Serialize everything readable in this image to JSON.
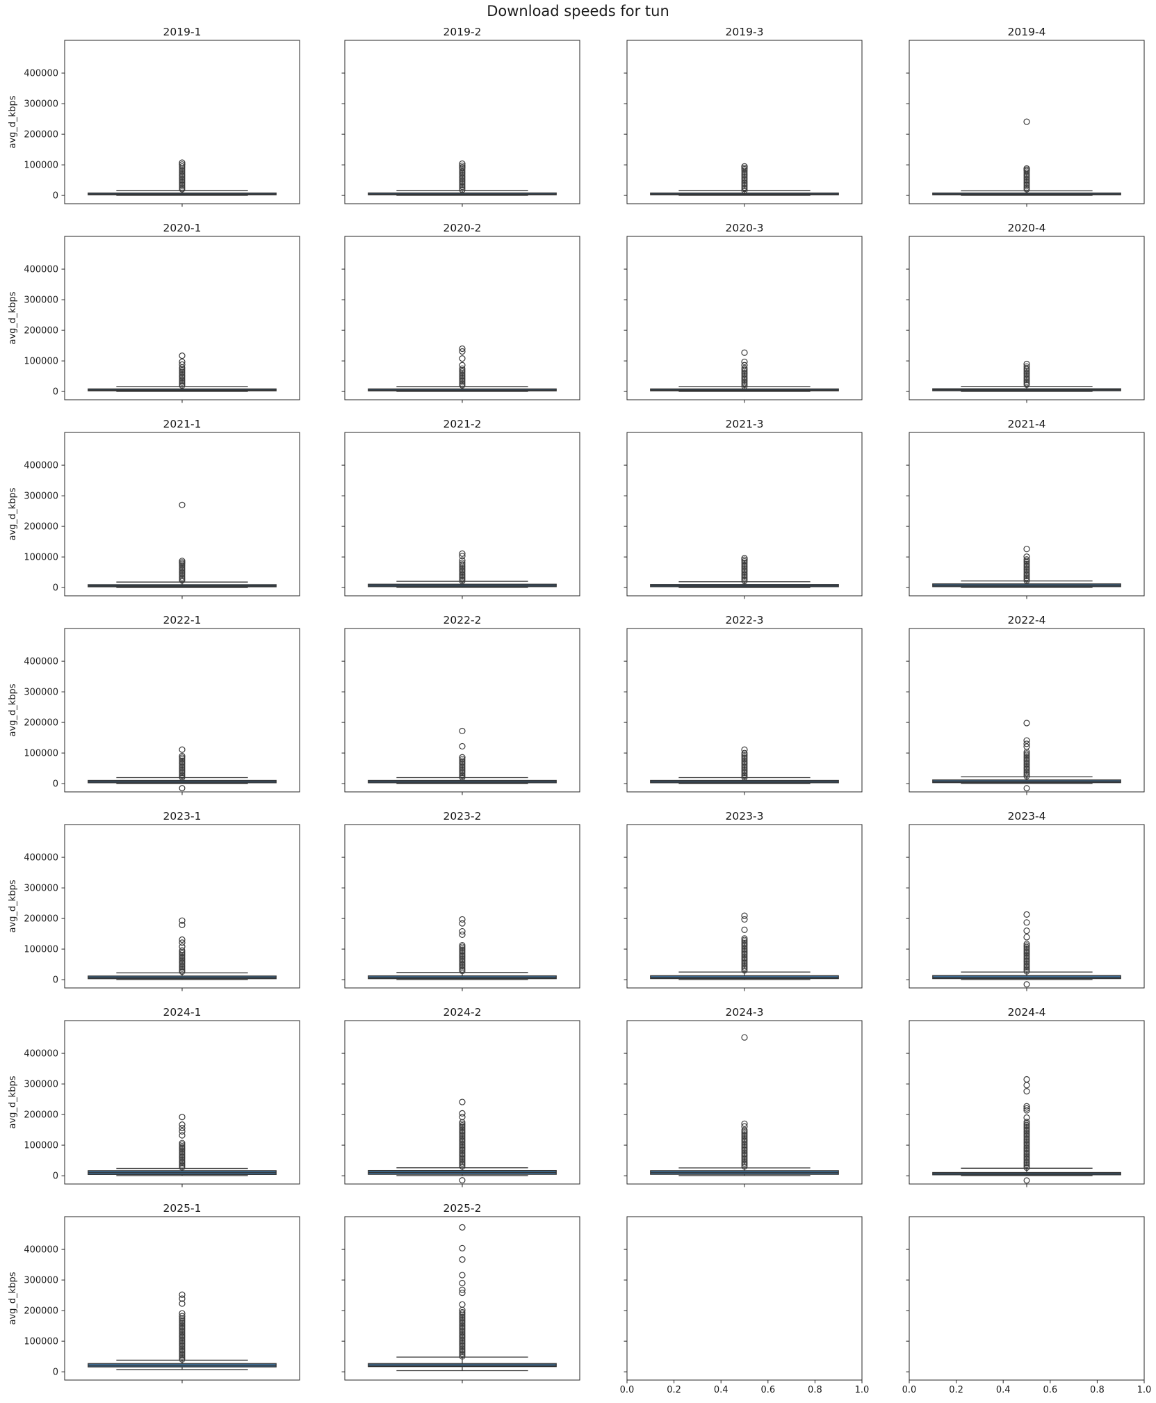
{
  "chart_data": {
    "type": "box",
    "title": "Download speeds for tun",
    "ylabel": "avg_d_kbps",
    "y_ticks": [
      0,
      100000,
      200000,
      300000,
      400000
    ],
    "ylim": [
      -27000,
      507000
    ],
    "grid": {
      "rows": 7,
      "cols": 4
    },
    "legend": "none",
    "grid_lines": "off",
    "box_fill_color": "#3e6e97",
    "line_color": "#333333",
    "spine_color": "#262626",
    "text_color": "#1a1a1a",
    "empty_panel_x_ticks": [
      "0.0",
      "0.2",
      "0.4",
      "0.6",
      "0.8",
      "1.0"
    ],
    "subplots": [
      {
        "title": "2019-1",
        "box": {
          "whisker_low": 300,
          "q1": 2000,
          "median": 4500,
          "q3": 8000,
          "whisker_high": 15500
        },
        "outlier_column": [
          16000,
          95000
        ],
        "outliers_high": [
          107000,
          101000
        ],
        "outliers_low": []
      },
      {
        "title": "2019-2",
        "box": {
          "whisker_low": 300,
          "q1": 2000,
          "median": 4500,
          "q3": 8200,
          "whisker_high": 15500
        },
        "outlier_column": [
          16000,
          88000
        ],
        "outliers_high": [
          104000,
          97000,
          92000
        ],
        "outliers_low": []
      },
      {
        "title": "2019-3",
        "box": {
          "whisker_low": 300,
          "q1": 2000,
          "median": 4500,
          "q3": 8000,
          "whisker_high": 15500
        },
        "outlier_column": [
          16000,
          86000
        ],
        "outliers_high": [
          95000,
          90000
        ],
        "outliers_low": []
      },
      {
        "title": "2019-4",
        "box": {
          "whisker_low": 300,
          "q1": 2000,
          "median": 4500,
          "q3": 8000,
          "whisker_high": 15000
        },
        "outlier_column": [
          15500,
          80000
        ],
        "outliers_high": [
          241000,
          88000,
          84000
        ],
        "outliers_low": []
      },
      {
        "title": "2020-1",
        "box": {
          "whisker_low": 300,
          "q1": 2200,
          "median": 5000,
          "q3": 8500,
          "whisker_high": 16500
        },
        "outlier_column": [
          17000,
          79000
        ],
        "outliers_high": [
          117000,
          97000,
          88000
        ],
        "outliers_low": []
      },
      {
        "title": "2020-2",
        "box": {
          "whisker_low": 300,
          "q1": 2000,
          "median": 4800,
          "q3": 8500,
          "whisker_high": 16000
        },
        "outlier_column": [
          17000,
          75000
        ],
        "outliers_high": [
          140000,
          131000,
          108000,
          86000
        ],
        "outliers_low": []
      },
      {
        "title": "2020-3",
        "box": {
          "whisker_low": 300,
          "q1": 2200,
          "median": 5000,
          "q3": 8500,
          "whisker_high": 16500
        },
        "outlier_column": [
          17000,
          77000
        ],
        "outliers_high": [
          127000,
          97000,
          86000
        ],
        "outliers_low": []
      },
      {
        "title": "2020-4",
        "box": {
          "whisker_low": 400,
          "q1": 2500,
          "median": 5500,
          "q3": 9000,
          "whisker_high": 17000
        },
        "outlier_column": [
          17500,
          82000
        ],
        "outliers_high": [
          90000
        ],
        "outliers_low": []
      },
      {
        "title": "2021-1",
        "box": {
          "whisker_low": 400,
          "q1": 2500,
          "median": 5500,
          "q3": 9500,
          "whisker_high": 18000
        },
        "outlier_column": [
          18500,
          78000
        ],
        "outliers_high": [
          270000,
          87000,
          82000
        ],
        "outliers_low": []
      },
      {
        "title": "2021-2",
        "box": {
          "whisker_low": 500,
          "q1": 3000,
          "median": 6500,
          "q3": 11000,
          "whisker_high": 20500
        },
        "outlier_column": [
          21000,
          81000
        ],
        "outliers_high": [
          111000,
          103000,
          89000
        ],
        "outliers_low": []
      },
      {
        "title": "2021-3",
        "box": {
          "whisker_low": 400,
          "q1": 2800,
          "median": 6000,
          "q3": 10000,
          "whisker_high": 19000
        },
        "outlier_column": [
          20000,
          86000
        ],
        "outliers_high": [
          96000,
          91000
        ],
        "outliers_low": []
      },
      {
        "title": "2021-4",
        "box": {
          "whisker_low": 500,
          "q1": 3000,
          "median": 7000,
          "q3": 12000,
          "whisker_high": 21500
        },
        "outlier_column": [
          22000,
          92000
        ],
        "outliers_high": [
          126000,
          101000
        ],
        "outliers_low": []
      },
      {
        "title": "2022-1",
        "box": {
          "whisker_low": 400,
          "q1": 2800,
          "median": 6000,
          "q3": 10500,
          "whisker_high": 19500
        },
        "outlier_column": [
          20000,
          85000
        ],
        "outliers_high": [
          111000,
          90000
        ],
        "outliers_low": [
          1000
        ]
      },
      {
        "title": "2022-2",
        "box": {
          "whisker_low": 400,
          "q1": 2800,
          "median": 6000,
          "q3": 10500,
          "whisker_high": 19500
        },
        "outlier_column": [
          20000,
          80000
        ],
        "outliers_high": [
          172000,
          122000,
          86000
        ],
        "outliers_low": []
      },
      {
        "title": "2022-3",
        "box": {
          "whisker_low": 400,
          "q1": 2800,
          "median": 6000,
          "q3": 10500,
          "whisker_high": 19500
        },
        "outlier_column": [
          20000,
          100000
        ],
        "outliers_high": [
          111000
        ],
        "outliers_low": []
      },
      {
        "title": "2022-4",
        "box": {
          "whisker_low": 500,
          "q1": 3200,
          "median": 7000,
          "q3": 12000,
          "whisker_high": 22500
        },
        "outlier_column": [
          23000,
          104000
        ],
        "outliers_high": [
          198000,
          141000,
          130000,
          121000
        ],
        "outliers_low": [
          800
        ]
      },
      {
        "title": "2023-1",
        "box": {
          "whisker_low": 500,
          "q1": 3200,
          "median": 7000,
          "q3": 12000,
          "whisker_high": 22500
        },
        "outlier_column": [
          23000,
          96000
        ],
        "outliers_high": [
          193000,
          179000,
          131000,
          121000,
          108000
        ],
        "outliers_low": []
      },
      {
        "title": "2023-2",
        "box": {
          "whisker_low": 500,
          "q1": 3300,
          "median": 7200,
          "q3": 12500,
          "whisker_high": 23500
        },
        "outlier_column": [
          24000,
          113000
        ],
        "outliers_high": [
          197000,
          184000,
          158000,
          147000
        ],
        "outliers_low": []
      },
      {
        "title": "2023-3",
        "box": {
          "whisker_low": 500,
          "q1": 3500,
          "median": 7500,
          "q3": 13000,
          "whisker_high": 25000
        },
        "outlier_column": [
          25500,
          135000
        ],
        "outliers_high": [
          209000,
          197000,
          163000
        ],
        "outliers_low": []
      },
      {
        "title": "2023-4",
        "box": {
          "whisker_low": 500,
          "q1": 3500,
          "median": 8000,
          "q3": 13500,
          "whisker_high": 25000
        },
        "outlier_column": [
          25500,
          117000
        ],
        "outliers_high": [
          213000,
          187000,
          160000,
          139000
        ],
        "outliers_low": [
          700
        ]
      },
      {
        "title": "2024-1",
        "box": {
          "whisker_low": 500,
          "q1": 4000,
          "median": 10000,
          "q3": 16500,
          "whisker_high": 24000
        },
        "outlier_column": [
          24500,
          107000
        ],
        "outliers_high": [
          192000,
          167000,
          156000,
          145000,
          132000
        ],
        "outliers_low": []
      },
      {
        "title": "2024-2",
        "box": {
          "whisker_low": 500,
          "q1": 4500,
          "median": 10500,
          "q3": 17000,
          "whisker_high": 26000
        },
        "outlier_column": [
          26500,
          175000
        ],
        "outliers_high": [
          241000,
          204000,
          192000
        ],
        "outliers_low": [
          1000
        ]
      },
      {
        "title": "2024-3",
        "box": {
          "whisker_low": 500,
          "q1": 4500,
          "median": 10000,
          "q3": 16500,
          "whisker_high": 25500
        },
        "outlier_column": [
          26000,
          150000
        ],
        "outliers_high": [
          452000,
          170000,
          161000
        ],
        "outliers_low": []
      },
      {
        "title": "2024-4",
        "box": {
          "whisker_low": 500,
          "q1": 3000,
          "median": 6500,
          "q3": 10500,
          "whisker_high": 24500
        },
        "outlier_column": [
          25000,
          176000
        ],
        "outliers_high": [
          315000,
          296000,
          276000,
          227000,
          220000,
          214000,
          190000
        ],
        "outliers_low": [
          500
        ]
      },
      {
        "title": "2025-1",
        "box": {
          "whisker_low": 7300,
          "q1": 16000,
          "median": 21500,
          "q3": 27000,
          "whisker_high": 38000
        },
        "outlier_column": [
          38500,
          175000
        ],
        "outliers_high": [
          252000,
          239000,
          223000,
          191000,
          182000
        ],
        "outliers_low": []
      },
      {
        "title": "2025-2",
        "box": {
          "whisker_low": 3700,
          "q1": 17000,
          "median": 22000,
          "q3": 27000,
          "whisker_high": 48000
        },
        "outlier_column": [
          48500,
          195000
        ],
        "outliers_high": [
          472000,
          404000,
          367000,
          316000,
          290000,
          268000,
          258000,
          220000,
          202000
        ],
        "outliers_low": []
      },
      {
        "title": null,
        "empty": true
      },
      {
        "title": null,
        "empty": true
      }
    ]
  }
}
